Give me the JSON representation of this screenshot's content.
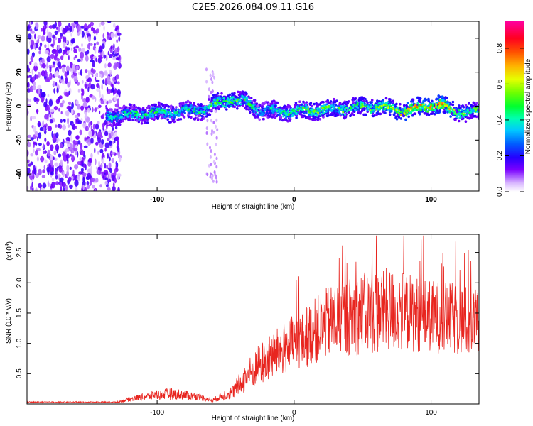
{
  "title": "C2E5.2026.084.09.11.G16",
  "chart_data": [
    {
      "type": "heatmap",
      "name": "spectrogram",
      "xlabel": "Height of straight line (km)",
      "ylabel": "Frequency (Hz)",
      "xlim": [
        -195,
        135
      ],
      "ylim": [
        -50,
        50
      ],
      "xticks": [
        -100,
        0,
        100
      ],
      "yticks": [
        -40,
        -20,
        0,
        20,
        40
      ],
      "colorbar": {
        "label": "Normalized spectral amplitude",
        "range": [
          0,
          0.95
        ],
        "ticks": [
          0.0,
          0.2,
          0.4,
          0.6,
          0.8
        ],
        "tick_labels": [
          "0.0",
          "0.2",
          "0.4",
          "0.6",
          "0.8"
        ]
      },
      "ridge": {
        "description": "Dominant frequency ridge near 0 Hz",
        "x": [
          -137,
          -120,
          -100,
          -80,
          -65,
          -55,
          -45,
          -35,
          -25,
          -15,
          0,
          20,
          40,
          60,
          80,
          95,
          105,
          115,
          125,
          135
        ],
        "center_hz": [
          -6,
          -5,
          -4,
          -3,
          -2,
          2,
          4,
          2,
          -2,
          -3,
          -3,
          -2,
          -1,
          0,
          -3,
          0,
          1,
          -2,
          -4,
          -3
        ],
        "peak_amplitude": [
          0.45,
          0.5,
          0.55,
          0.5,
          0.55,
          0.6,
          0.6,
          0.55,
          0.45,
          0.5,
          0.55,
          0.6,
          0.55,
          0.65,
          0.75,
          0.8,
          0.85,
          0.7,
          0.6,
          0.55
        ]
      },
      "noise_region": {
        "x_range": [
          -195,
          -135
        ],
        "amplitude": 0.1
      }
    },
    {
      "type": "line",
      "name": "snr",
      "xlabel": "Height of straight line (km)",
      "ylabel": "SNR (10 * v/v)",
      "y_multiplier_label": "(x10",
      "y_multiplier_exp": "4",
      "xlim": [
        -195,
        135
      ],
      "ylim": [
        0,
        2.8
      ],
      "xticks": [
        -100,
        0,
        100
      ],
      "yticks": [
        0.5,
        1.0,
        1.5,
        2.0,
        2.5
      ],
      "ytick_labels": [
        "0.5",
        "1.0",
        "1.5",
        "2.0",
        "2.5"
      ],
      "series": [
        {
          "name": "SNR",
          "color": "#e8251f",
          "envelope_x": [
            -195,
            -130,
            -120,
            -100,
            -90,
            -80,
            -70,
            -60,
            -45,
            -35,
            -25,
            -15,
            -5,
            5,
            15,
            25,
            40,
            55,
            70,
            85,
            100,
            115,
            130,
            135
          ],
          "envelope_mean": [
            0.03,
            0.03,
            0.08,
            0.15,
            0.17,
            0.15,
            0.12,
            0.06,
            0.2,
            0.45,
            0.65,
            0.8,
            0.95,
            1.05,
            1.2,
            1.35,
            1.45,
            1.5,
            1.55,
            1.5,
            1.45,
            1.4,
            1.35,
            1.3
          ],
          "envelope_spread": [
            0.01,
            0.01,
            0.04,
            0.08,
            0.1,
            0.08,
            0.06,
            0.03,
            0.12,
            0.25,
            0.35,
            0.4,
            0.45,
            0.5,
            0.55,
            0.6,
            0.65,
            0.7,
            0.7,
            0.65,
            0.6,
            0.6,
            0.6,
            0.6
          ],
          "max": 2.78,
          "end_value": 1.5
        }
      ]
    }
  ]
}
